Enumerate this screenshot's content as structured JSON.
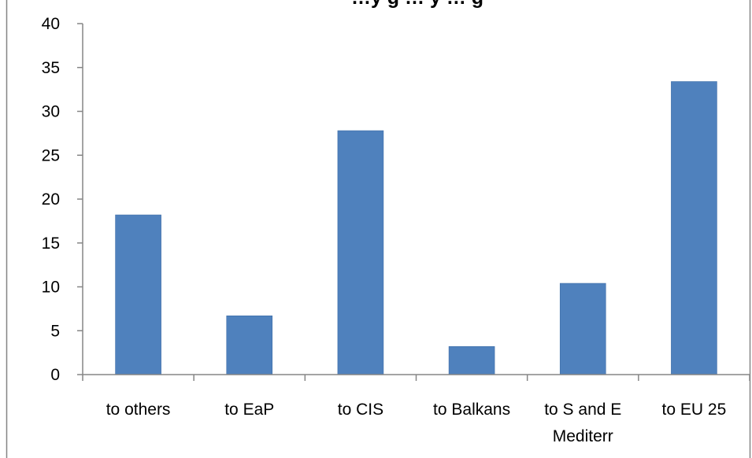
{
  "colors": {
    "bar": "#4f81bd",
    "bar_edge": "#3e6da7",
    "axis": "#868686",
    "frame": "#868686",
    "text": "#000000"
  },
  "chart_data": {
    "type": "bar",
    "title": "…y g … y … g",
    "xlabel": "",
    "ylabel": "",
    "categories": [
      "to others",
      "to EaP",
      "to CIS",
      "to Balkans",
      "to S and E Mediterr",
      "to EU 25"
    ],
    "category_lines": [
      [
        "to others"
      ],
      [
        "to EaP"
      ],
      [
        "to CIS"
      ],
      [
        "to Balkans"
      ],
      [
        "to S and E",
        "Mediterr"
      ],
      [
        "to EU 25"
      ]
    ],
    "values": [
      18.2,
      6.7,
      27.8,
      3.2,
      10.4,
      33.4
    ],
    "ylim": [
      0,
      40
    ],
    "yticks": [
      0,
      5,
      10,
      15,
      20,
      25,
      30,
      35,
      40
    ],
    "ytick_labels": [
      "0",
      "5",
      "10",
      "15",
      "20",
      "25",
      "30",
      "35",
      "40"
    ],
    "grid": false,
    "legend": "none"
  }
}
